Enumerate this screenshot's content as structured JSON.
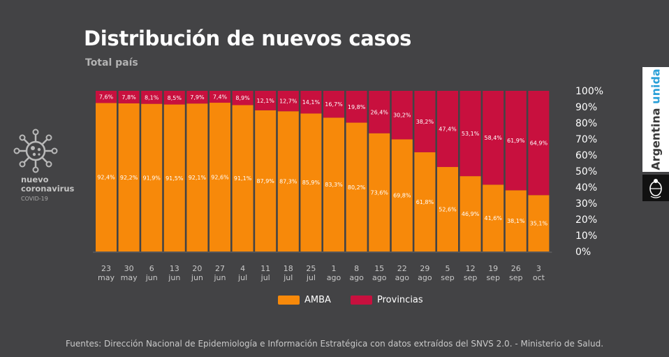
{
  "header": {
    "title": "Distribución de nuevos casos",
    "subtitle": "Total país"
  },
  "badge": {
    "line1": "nuevo",
    "line2": "coronavirus",
    "line3": "COVID-19",
    "icon": "virus-icon"
  },
  "brand": {
    "word1": "Argentina",
    "word2": "unida",
    "color1": "#3a3a3a",
    "color2": "#2aa0d8",
    "seal_icon": "national-seal-icon"
  },
  "legend": {
    "amba": "AMBA",
    "provincias": "Provincias"
  },
  "colors": {
    "amba": "#f7890a",
    "provincias": "#c8103e",
    "background": "#434345"
  },
  "footer": "Fuentes: Dirección Nacional de Epidemiología e Información Estratégica con datos extraídos del SNVS 2.0. - Ministerio de Salud.",
  "chart_data": {
    "type": "bar",
    "stacked": true,
    "title": "Distribución de nuevos casos",
    "subtitle": "Total país",
    "categories": [
      [
        "23",
        "may"
      ],
      [
        "30",
        "may"
      ],
      [
        "6",
        "jun"
      ],
      [
        "13",
        "jun"
      ],
      [
        "20",
        "jun"
      ],
      [
        "27",
        "jun"
      ],
      [
        "4",
        "jul"
      ],
      [
        "11",
        "jul"
      ],
      [
        "18",
        "jul"
      ],
      [
        "25",
        "jul"
      ],
      [
        "1",
        "ago"
      ],
      [
        "8",
        "ago"
      ],
      [
        "15",
        "ago"
      ],
      [
        "22",
        "ago"
      ],
      [
        "29",
        "ago"
      ],
      [
        "5",
        "sep"
      ],
      [
        "12",
        "sep"
      ],
      [
        "19",
        "sep"
      ],
      [
        "26",
        "sep"
      ],
      [
        "3",
        "oct"
      ]
    ],
    "series": [
      {
        "name": "AMBA",
        "values": [
          92.4,
          92.2,
          91.9,
          91.5,
          92.1,
          92.6,
          91.1,
          87.9,
          87.3,
          85.9,
          83.3,
          80.2,
          73.6,
          69.8,
          61.8,
          52.6,
          46.9,
          41.6,
          38.1,
          35.1
        ],
        "labels": [
          "92,4%",
          "92,2%",
          "91,9%",
          "91,5%",
          "92,1%",
          "92,6%",
          "91,1%",
          "87,9%",
          "87,3%",
          "85,9%",
          "83,3%",
          "80,2%",
          "73,6%",
          "69,8%",
          "61,8%",
          "52,6%",
          "46,9%",
          "41,6%",
          "38,1%",
          "35,1%"
        ]
      },
      {
        "name": "Provincias",
        "values": [
          7.6,
          7.8,
          8.1,
          8.5,
          7.9,
          7.4,
          8.9,
          12.1,
          12.7,
          14.1,
          16.7,
          19.8,
          26.4,
          30.2,
          38.2,
          47.4,
          53.1,
          58.4,
          61.9,
          64.9
        ],
        "labels": [
          "7,6%",
          "7,8%",
          "8,1%",
          "8,5%",
          "7,9%",
          "7,4%",
          "8,9%",
          "12,1%",
          "12,7%",
          "14,1%",
          "16,7%",
          "19,8%",
          "26,4%",
          "30,2%",
          "38,2%",
          "47,4%",
          "53,1%",
          "58,4%",
          "61,9%",
          "64,9%"
        ]
      }
    ],
    "y_ticks": [
      "0%",
      "10%",
      "20%",
      "30%",
      "40%",
      "50%",
      "60%",
      "70%",
      "80%",
      "90%",
      "100%"
    ],
    "ylim": [
      0,
      100
    ],
    "y_axis_side": "right",
    "grid": false,
    "legend_position": "bottom-center"
  }
}
